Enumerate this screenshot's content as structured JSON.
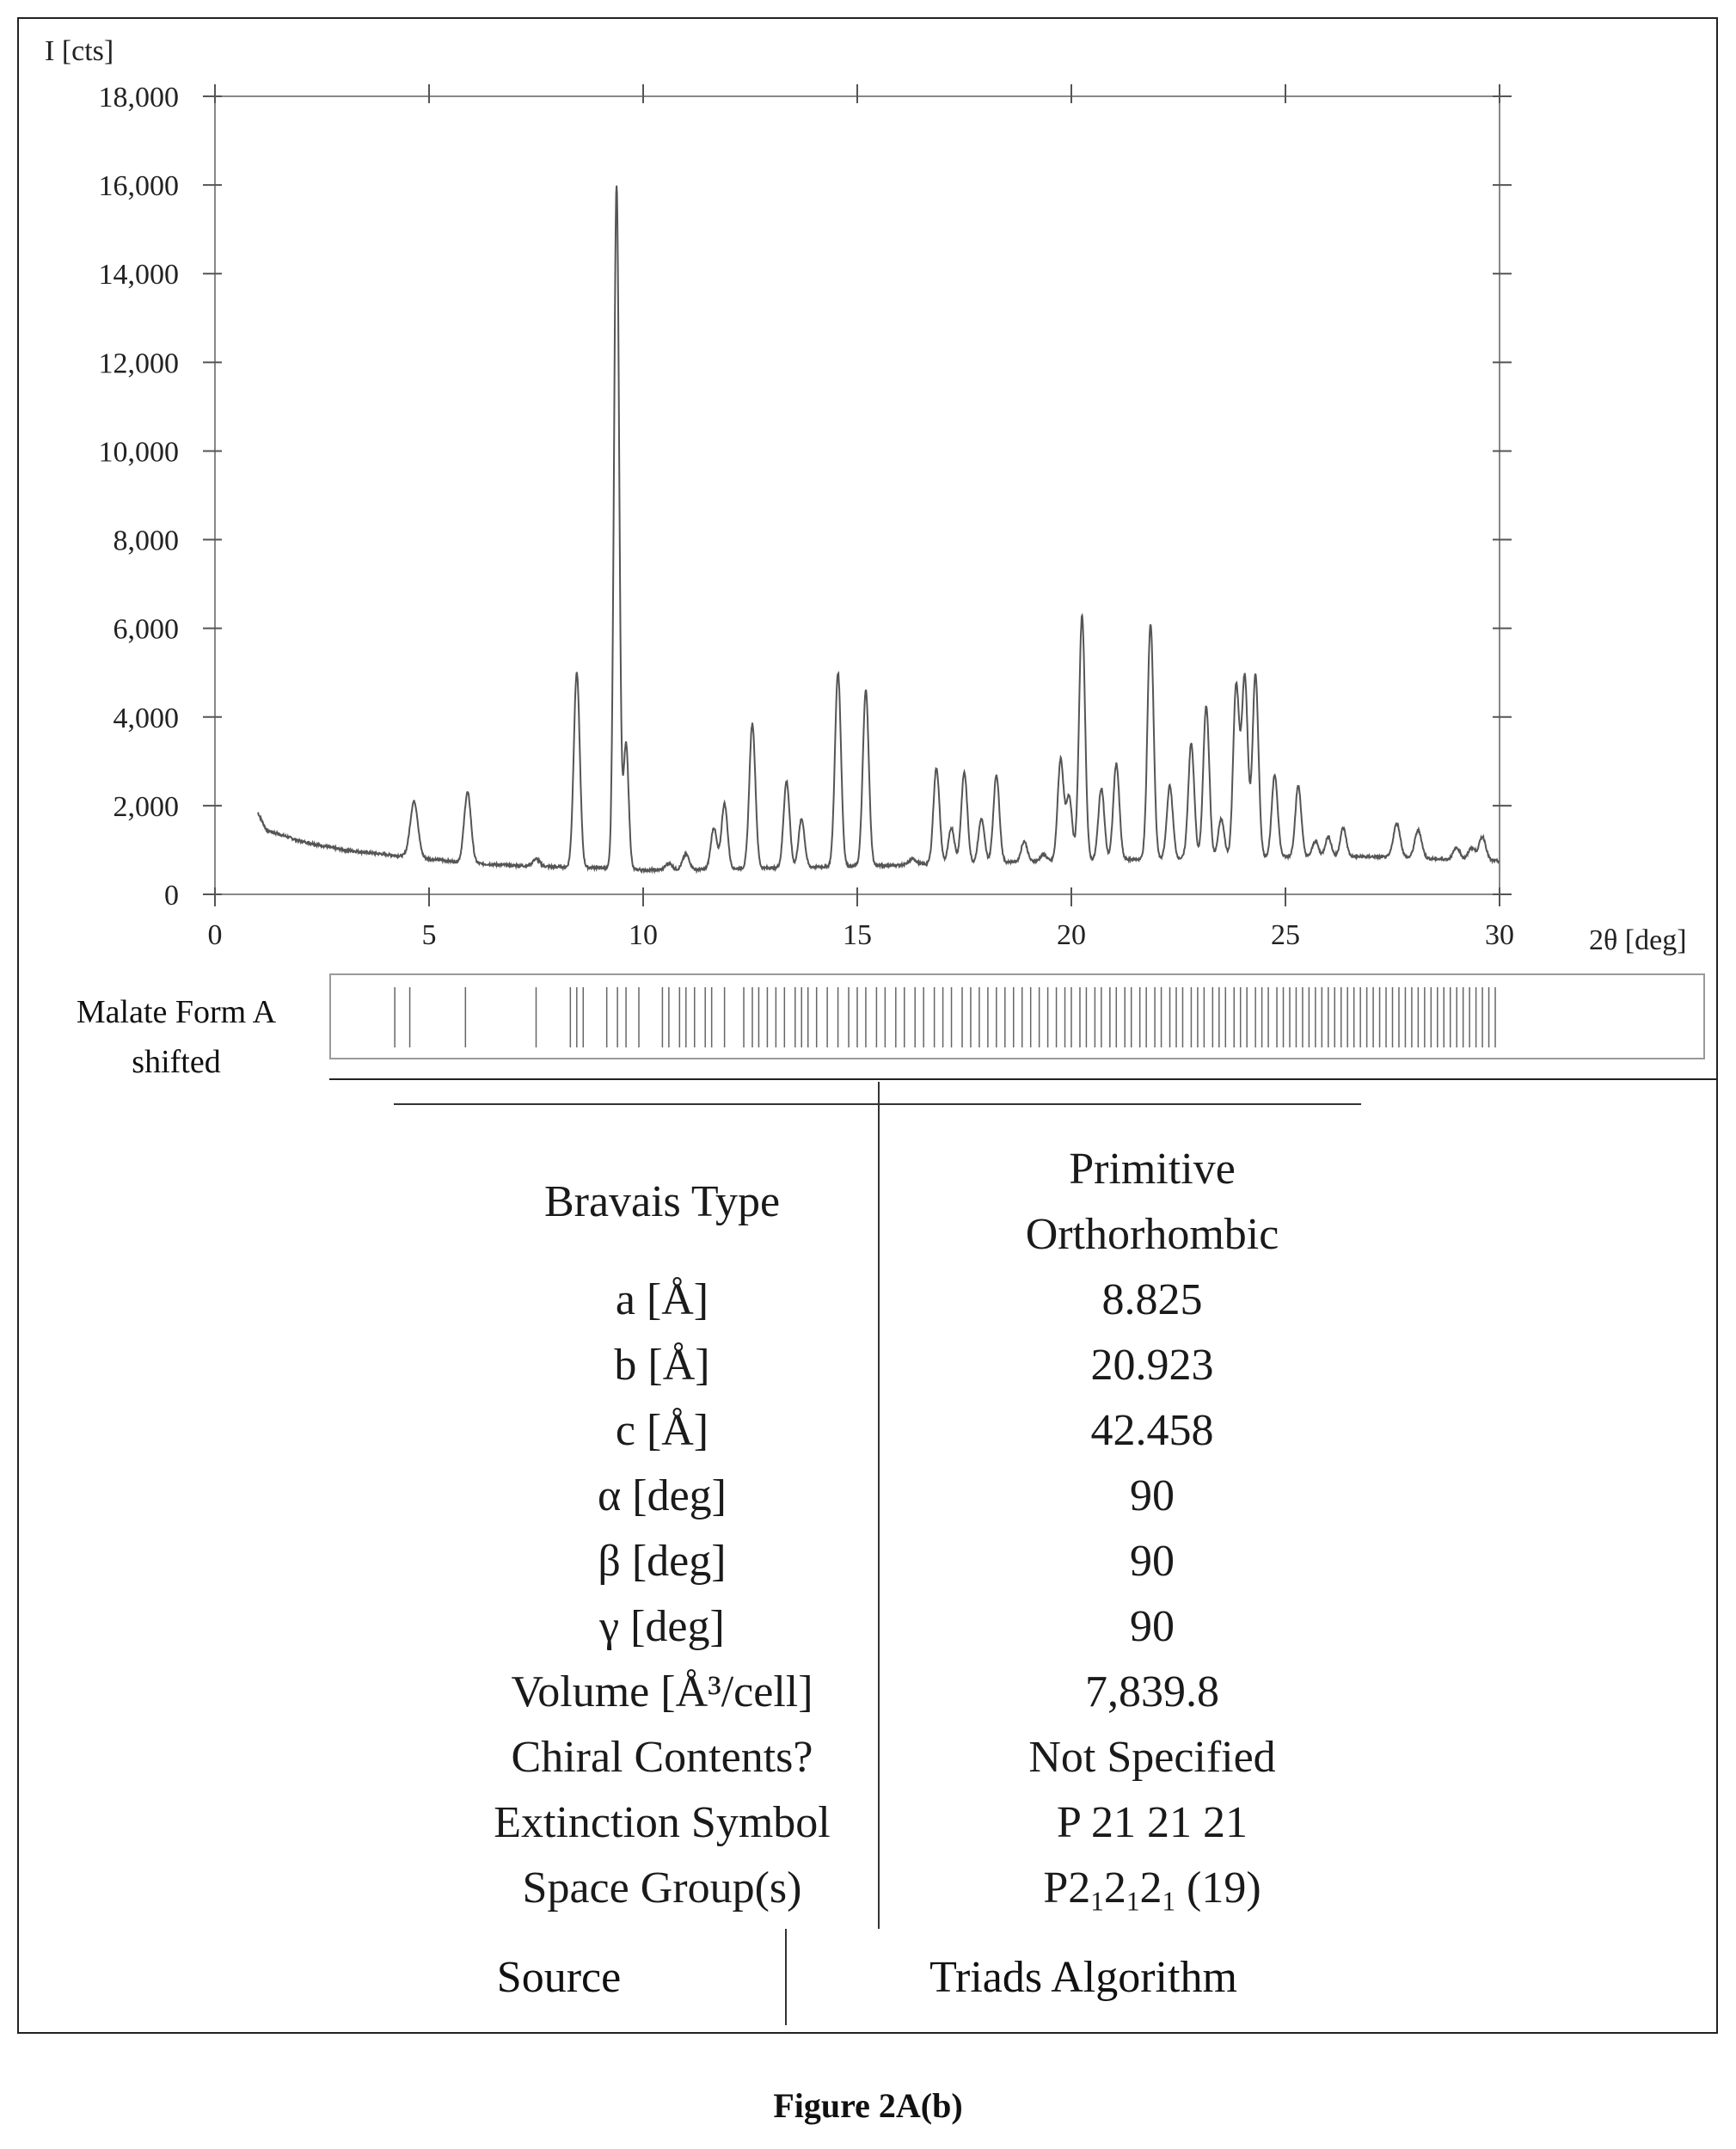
{
  "chart_data": {
    "type": "line",
    "ylabel": "I [cts]",
    "xlabel": "2θ [deg]",
    "xlim": [
      0,
      30
    ],
    "ylim": [
      0,
      18000
    ],
    "x_ticks": [
      "0",
      "5",
      "10",
      "15",
      "20",
      "25",
      "30"
    ],
    "y_ticks": [
      "0",
      "2,000",
      "4,000",
      "6,000",
      "8,000",
      "10,000",
      "12,000",
      "14,000",
      "16,000",
      "18,000"
    ],
    "grid": false,
    "baseline": [
      [
        1.0,
        1850
      ],
      [
        1.2,
        1450
      ],
      [
        2.0,
        1200
      ],
      [
        3.0,
        1000
      ],
      [
        4.0,
        900
      ],
      [
        5.0,
        800
      ],
      [
        6.0,
        700
      ],
      [
        7.0,
        650
      ],
      [
        8.0,
        620
      ],
      [
        9.0,
        600
      ],
      [
        10.0,
        550
      ],
      [
        11.0,
        550
      ],
      [
        12.0,
        580
      ],
      [
        13.0,
        600
      ],
      [
        14.0,
        620
      ],
      [
        15.0,
        640
      ],
      [
        16.0,
        660
      ],
      [
        17.0,
        700
      ],
      [
        18.0,
        720
      ],
      [
        19.0,
        740
      ],
      [
        20.0,
        760
      ],
      [
        21.0,
        780
      ],
      [
        22.0,
        800
      ],
      [
        23.0,
        820
      ],
      [
        24.0,
        840
      ],
      [
        25.0,
        850
      ],
      [
        26.0,
        850
      ],
      [
        27.0,
        850
      ],
      [
        28.0,
        820
      ],
      [
        29.0,
        780
      ],
      [
        30.0,
        750
      ]
    ],
    "peaks": [
      {
        "x": 4.65,
        "y": 2100,
        "w": 0.09
      },
      {
        "x": 5.9,
        "y": 2300,
        "w": 0.08
      },
      {
        "x": 7.5,
        "y": 800,
        "w": 0.08
      },
      {
        "x": 8.45,
        "y": 5000,
        "w": 0.07
      },
      {
        "x": 9.38,
        "y": 16000,
        "w": 0.06
      },
      {
        "x": 9.6,
        "y": 3400,
        "w": 0.06
      },
      {
        "x": 10.6,
        "y": 700,
        "w": 0.08
      },
      {
        "x": 11.0,
        "y": 900,
        "w": 0.08
      },
      {
        "x": 11.65,
        "y": 1500,
        "w": 0.07
      },
      {
        "x": 11.9,
        "y": 2050,
        "w": 0.07
      },
      {
        "x": 12.55,
        "y": 3850,
        "w": 0.07
      },
      {
        "x": 13.35,
        "y": 2550,
        "w": 0.07
      },
      {
        "x": 13.7,
        "y": 1700,
        "w": 0.07
      },
      {
        "x": 14.55,
        "y": 5000,
        "w": 0.07
      },
      {
        "x": 15.2,
        "y": 4600,
        "w": 0.07
      },
      {
        "x": 16.3,
        "y": 800,
        "w": 0.08
      },
      {
        "x": 16.85,
        "y": 2850,
        "w": 0.07
      },
      {
        "x": 17.2,
        "y": 1500,
        "w": 0.07
      },
      {
        "x": 17.5,
        "y": 2750,
        "w": 0.07
      },
      {
        "x": 17.9,
        "y": 1700,
        "w": 0.07
      },
      {
        "x": 18.25,
        "y": 2700,
        "w": 0.07
      },
      {
        "x": 18.9,
        "y": 1200,
        "w": 0.07
      },
      {
        "x": 19.35,
        "y": 900,
        "w": 0.07
      },
      {
        "x": 19.75,
        "y": 3050,
        "w": 0.07
      },
      {
        "x": 19.95,
        "y": 2200,
        "w": 0.07
      },
      {
        "x": 20.25,
        "y": 6300,
        "w": 0.07
      },
      {
        "x": 20.7,
        "y": 2400,
        "w": 0.07
      },
      {
        "x": 21.05,
        "y": 2950,
        "w": 0.07
      },
      {
        "x": 21.85,
        "y": 6100,
        "w": 0.07
      },
      {
        "x": 22.3,
        "y": 2450,
        "w": 0.07
      },
      {
        "x": 22.8,
        "y": 3400,
        "w": 0.07
      },
      {
        "x": 23.15,
        "y": 4250,
        "w": 0.07
      },
      {
        "x": 23.5,
        "y": 1700,
        "w": 0.07
      },
      {
        "x": 23.85,
        "y": 4700,
        "w": 0.07
      },
      {
        "x": 24.05,
        "y": 4900,
        "w": 0.07
      },
      {
        "x": 24.3,
        "y": 4950,
        "w": 0.07
      },
      {
        "x": 24.75,
        "y": 2700,
        "w": 0.07
      },
      {
        "x": 25.3,
        "y": 2450,
        "w": 0.07
      },
      {
        "x": 25.7,
        "y": 1200,
        "w": 0.07
      },
      {
        "x": 26.0,
        "y": 1300,
        "w": 0.07
      },
      {
        "x": 26.35,
        "y": 1500,
        "w": 0.07
      },
      {
        "x": 27.6,
        "y": 1600,
        "w": 0.08
      },
      {
        "x": 28.1,
        "y": 1450,
        "w": 0.08
      },
      {
        "x": 29.0,
        "y": 1050,
        "w": 0.08
      },
      {
        "x": 29.35,
        "y": 1050,
        "w": 0.08
      },
      {
        "x": 29.6,
        "y": 1300,
        "w": 0.08
      }
    ],
    "reference_pattern": {
      "label": [
        "Malate Form A",
        "shifted"
      ],
      "line_positions": [
        4.2,
        4.55,
        5.85,
        7.5,
        8.3,
        8.45,
        8.6,
        9.15,
        9.4,
        9.6,
        9.9,
        10.45,
        10.6,
        10.85,
        11.0,
        11.2,
        11.45,
        11.6,
        11.9,
        12.35,
        12.55,
        12.7,
        12.9,
        13.1,
        13.3,
        13.55,
        13.7,
        13.85,
        14.05,
        14.3,
        14.55,
        14.8,
        15.0,
        15.2,
        15.45,
        15.65,
        15.9,
        16.1,
        16.35,
        16.55,
        16.8,
        17.0,
        17.2,
        17.45,
        17.65,
        17.85,
        18.05,
        18.25,
        18.45,
        18.65,
        18.85,
        19.05,
        19.25,
        19.45,
        19.65,
        19.85,
        20.0,
        20.2,
        20.35,
        20.55,
        20.7,
        20.9,
        21.05,
        21.25,
        21.4,
        21.6,
        21.75,
        21.95,
        22.1,
        22.3,
        22.45,
        22.6,
        22.8,
        22.95,
        23.1,
        23.3,
        23.45,
        23.6,
        23.8,
        23.95,
        24.1,
        24.3,
        24.45,
        24.6,
        24.8,
        24.95,
        25.1,
        25.25,
        25.4,
        25.55,
        25.7,
        25.85,
        26.0,
        26.15,
        26.3,
        26.45,
        26.6,
        26.75,
        26.9,
        27.05,
        27.2,
        27.35,
        27.5,
        27.65,
        27.8,
        27.95,
        28.1,
        28.25,
        28.4,
        28.55,
        28.7,
        28.85,
        29.0,
        29.15,
        29.3,
        29.45,
        29.6,
        29.75,
        29.9
      ]
    }
  },
  "cell_table": {
    "rows": [
      {
        "param": "Bravais Type",
        "value_lines": [
          "Primitive",
          "Orthorhombic"
        ]
      },
      {
        "param": "a [Å]",
        "value": "8.825"
      },
      {
        "param": "b [Å]",
        "value": "20.923"
      },
      {
        "param": "c [Å]",
        "value": "42.458"
      },
      {
        "param": "α [deg]",
        "value": "90"
      },
      {
        "param": "β [deg]",
        "value": "90"
      },
      {
        "param": "γ [deg]",
        "value": "90"
      },
      {
        "param": "Volume [Å³/cell]",
        "value": "7,839.8"
      },
      {
        "param": "Chiral Contents?",
        "value": "Not Specified"
      },
      {
        "param": "Extinction Symbol",
        "value": "P 21 21 21"
      },
      {
        "param": "Space Group(s)",
        "value_parts": [
          "P2",
          "1",
          "2",
          "1",
          "2",
          "1",
          " (19)"
        ]
      }
    ],
    "source": {
      "param": "Source",
      "value": "Triads Algorithm"
    }
  },
  "caption": "Figure 2A(b)"
}
